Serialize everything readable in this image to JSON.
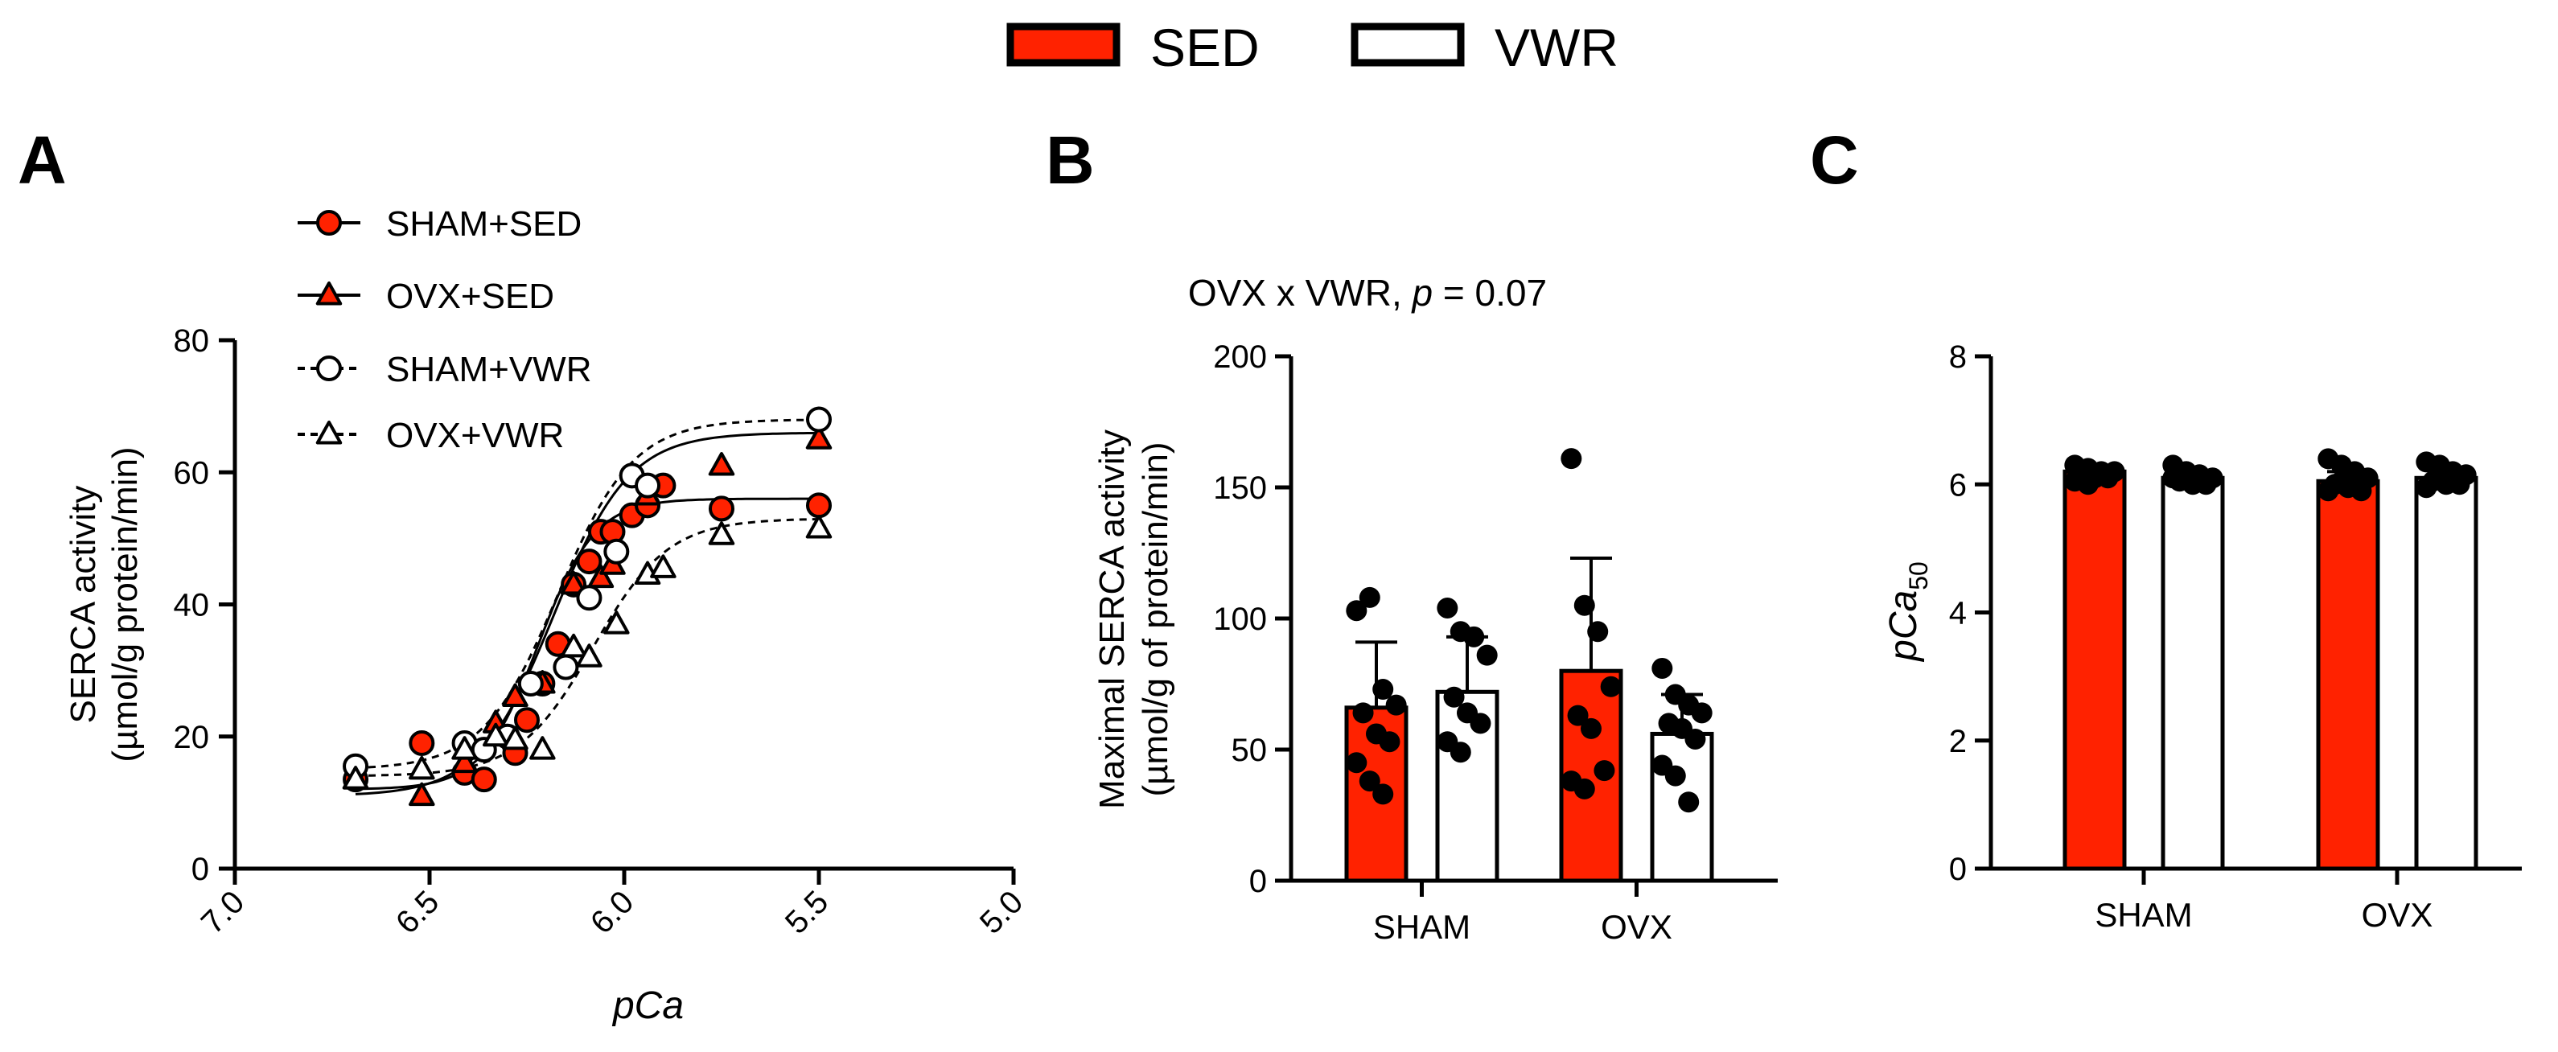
{
  "legend_top": {
    "items": [
      {
        "label": "SED",
        "fill": "#ff2200"
      },
      {
        "label": "VWR",
        "fill": "#ffffff"
      }
    ]
  },
  "colors": {
    "sed": "#ff2200",
    "vwr": "#ffffff",
    "ink": "#000000"
  },
  "panels": {
    "a": {
      "letter": "A"
    },
    "b": {
      "letter": "B",
      "annotation_prefix": "OVX x VWR, ",
      "annotation_p": "p",
      "annotation_suffix": " = 0.07"
    },
    "c": {
      "letter": "C"
    }
  },
  "chart_data": [
    {
      "id": "A",
      "type": "scatter",
      "title": "",
      "xlabel": "pCa",
      "ylabel_lines": [
        "SERCA activity",
        "(µmol/g protein/min)"
      ],
      "xlim": [
        7.0,
        5.0
      ],
      "ylim": [
        0,
        80
      ],
      "xticks": [
        7.0,
        6.5,
        6.0,
        5.5,
        5.0
      ],
      "xtick_labels": [
        "7.0",
        "6.5",
        "6.0",
        "5.5",
        "5.0"
      ],
      "yticks": [
        0,
        20,
        40,
        60,
        80
      ],
      "ytick_labels": [
        "0",
        "20",
        "40",
        "60",
        "80"
      ],
      "legend": [
        "SHAM+SED",
        "OVX+SED",
        "SHAM+VWR",
        "OVX+VWR"
      ],
      "series": [
        {
          "name": "SHAM+SED",
          "marker": "circle",
          "fill": "#ff2200",
          "dashed": false,
          "x": [
            6.69,
            6.52,
            6.41,
            6.36,
            6.28,
            6.25,
            6.21,
            6.17,
            6.13,
            6.09,
            6.06,
            6.03,
            5.98,
            5.94,
            5.9,
            5.75,
            5.5
          ],
          "y": [
            13.5,
            19,
            14.5,
            13.5,
            17.5,
            22.5,
            28,
            34,
            43,
            46.5,
            51,
            51,
            53.5,
            55,
            58,
            54.5,
            55
          ],
          "fit": {
            "bottom": 12,
            "top": 56,
            "pca50": 6.22,
            "hill": 6
          }
        },
        {
          "name": "OVX+SED",
          "marker": "triangle",
          "fill": "#ff2200",
          "dashed": false,
          "x": [
            6.69,
            6.52,
            6.41,
            6.33,
            6.28,
            6.21,
            6.13,
            6.06,
            6.03,
            5.94,
            5.75,
            5.5
          ],
          "y": [
            13.5,
            11,
            16,
            22,
            26,
            28,
            43,
            44,
            46,
            56.5,
            61,
            65
          ],
          "fit": {
            "bottom": 11,
            "top": 66,
            "pca50": 6.18,
            "hill": 4.5
          }
        },
        {
          "name": "SHAM+VWR",
          "marker": "circle",
          "fill": "#ffffff",
          "dashed": false,
          "x": [
            6.69,
            6.41,
            6.36,
            6.3,
            6.24,
            6.15,
            6.09,
            6.02,
            5.98,
            5.94,
            5.5
          ],
          "y": [
            15.5,
            19,
            18,
            20,
            28,
            30.5,
            41,
            48,
            59.5,
            58,
            68
          ],
          "fit": {
            "bottom": 15,
            "top": 68,
            "pca50": 6.17,
            "hill": 4.5
          }
        },
        {
          "name": "OVX+VWR",
          "marker": "triangle",
          "fill": "#ffffff",
          "dashed": true,
          "x": [
            6.69,
            6.52,
            6.41,
            6.33,
            6.28,
            6.21,
            6.13,
            6.09,
            6.02,
            5.94,
            5.9,
            5.75,
            5.5
          ],
          "y": [
            13.5,
            15,
            18,
            20,
            19.5,
            18,
            33.5,
            32,
            37,
            44.5,
            45.5,
            50.5,
            51.5
          ],
          "fit": {
            "bottom": 14,
            "top": 53,
            "pca50": 6.08,
            "hill": 4.5
          }
        }
      ]
    },
    {
      "id": "B",
      "type": "bar",
      "title": "OVX x VWR, p = 0.07",
      "ylabel_lines": [
        "Maximal SERCA activity",
        "(µmol/g of protein/min)"
      ],
      "categories": [
        "SHAM",
        "OVX"
      ],
      "ylim": [
        0,
        200
      ],
      "yticks": [
        0,
        50,
        100,
        150,
        200
      ],
      "ytick_labels": [
        "0",
        "50",
        "100",
        "150",
        "200"
      ],
      "series": [
        {
          "name": "SED",
          "fill": "#ff2200",
          "values": [
            66,
            80
          ],
          "errors": [
            25,
            43
          ],
          "points": [
            [
              103,
              108,
              73,
              67,
              64,
              56,
              53,
              45,
              38,
              33
            ],
            [
              161,
              105,
              95,
              74,
              63,
              58,
              42,
              38,
              35
            ]
          ]
        },
        {
          "name": "VWR",
          "fill": "#ffffff",
          "values": [
            72,
            56
          ],
          "errors": [
            21,
            15
          ],
          "points": [
            [
              104,
              95,
              93,
              86,
              70,
              64,
              60,
              53,
              49
            ],
            [
              81,
              71,
              67,
              64,
              60,
              58,
              54,
              44,
              40,
              30
            ]
          ]
        }
      ]
    },
    {
      "id": "C",
      "type": "bar",
      "title": "",
      "ylabel_main": "pCa",
      "ylabel_sub": "50",
      "categories": [
        "SHAM",
        "OVX"
      ],
      "ylim": [
        0,
        8
      ],
      "yticks": [
        0,
        2,
        4,
        6,
        8
      ],
      "ytick_labels": [
        "0",
        "2",
        "4",
        "6",
        "8"
      ],
      "series": [
        {
          "name": "SED",
          "fill": "#ff2200",
          "values": [
            6.2,
            6.05
          ],
          "errors": [
            0.08,
            0.15
          ],
          "points": [
            [
              6.3,
              6.25,
              6.2,
              6.2,
              6.15,
              6.1,
              6.1,
              6.05,
              6.0
            ],
            [
              6.4,
              6.3,
              6.2,
              6.1,
              6.0,
              5.95,
              5.9,
              5.9,
              6.05
            ]
          ]
        },
        {
          "name": "VWR",
          "fill": "#ffffff",
          "values": [
            6.1,
            6.1
          ],
          "errors": [
            0.08,
            0.12
          ],
          "points": [
            [
              6.3,
              6.2,
              6.15,
              6.1,
              6.05,
              6.0,
              6.0,
              6.1,
              6.2
            ],
            [
              6.35,
              6.3,
              6.2,
              6.15,
              6.05,
              6.0,
              6.0,
              5.95
            ]
          ]
        }
      ]
    }
  ]
}
